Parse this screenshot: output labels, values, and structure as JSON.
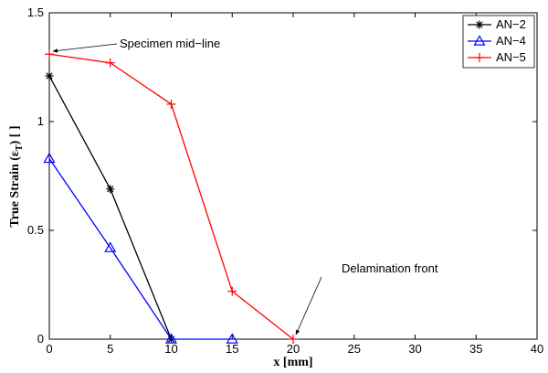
{
  "chart_data": {
    "type": "line",
    "title": "",
    "xlabel": "x [mm]",
    "ylabel_main": "True Strain (ε",
    "ylabel_sub": "T",
    "ylabel_tail": ") [ ]",
    "xlim": [
      0,
      40
    ],
    "ylim": [
      0,
      1.5
    ],
    "xticks": [
      0,
      5,
      10,
      15,
      20,
      25,
      30,
      35,
      40
    ],
    "yticks": [
      0,
      0.5,
      1,
      1.5
    ],
    "xtick_labels": [
      "0",
      "5",
      "10",
      "15",
      "20",
      "25",
      "30",
      "35",
      "40"
    ],
    "ytick_labels": [
      "0",
      "0.5",
      "1",
      "1.5"
    ],
    "grid": false,
    "legend_position": "top-right",
    "series": [
      {
        "name": "AN−2",
        "color": "#000000",
        "marker": "asterisk",
        "x": [
          0,
          5,
          10
        ],
        "y": [
          1.21,
          0.69,
          0.0
        ]
      },
      {
        "name": "AN−4",
        "color": "#0000ff",
        "marker": "triangle",
        "x": [
          0,
          5,
          10,
          15
        ],
        "y": [
          0.83,
          0.42,
          0.0,
          0.0
        ]
      },
      {
        "name": "AN−5",
        "color": "#ff0000",
        "marker": "plus",
        "x": [
          0,
          5,
          10,
          15,
          20
        ],
        "y": [
          1.31,
          1.27,
          1.08,
          0.22,
          0.0
        ]
      }
    ],
    "annotations": [
      {
        "text": "Specimen mid−line",
        "target": [
          0,
          1.31
        ]
      },
      {
        "text": "Delamination front",
        "target": [
          20,
          0.0
        ]
      }
    ]
  }
}
